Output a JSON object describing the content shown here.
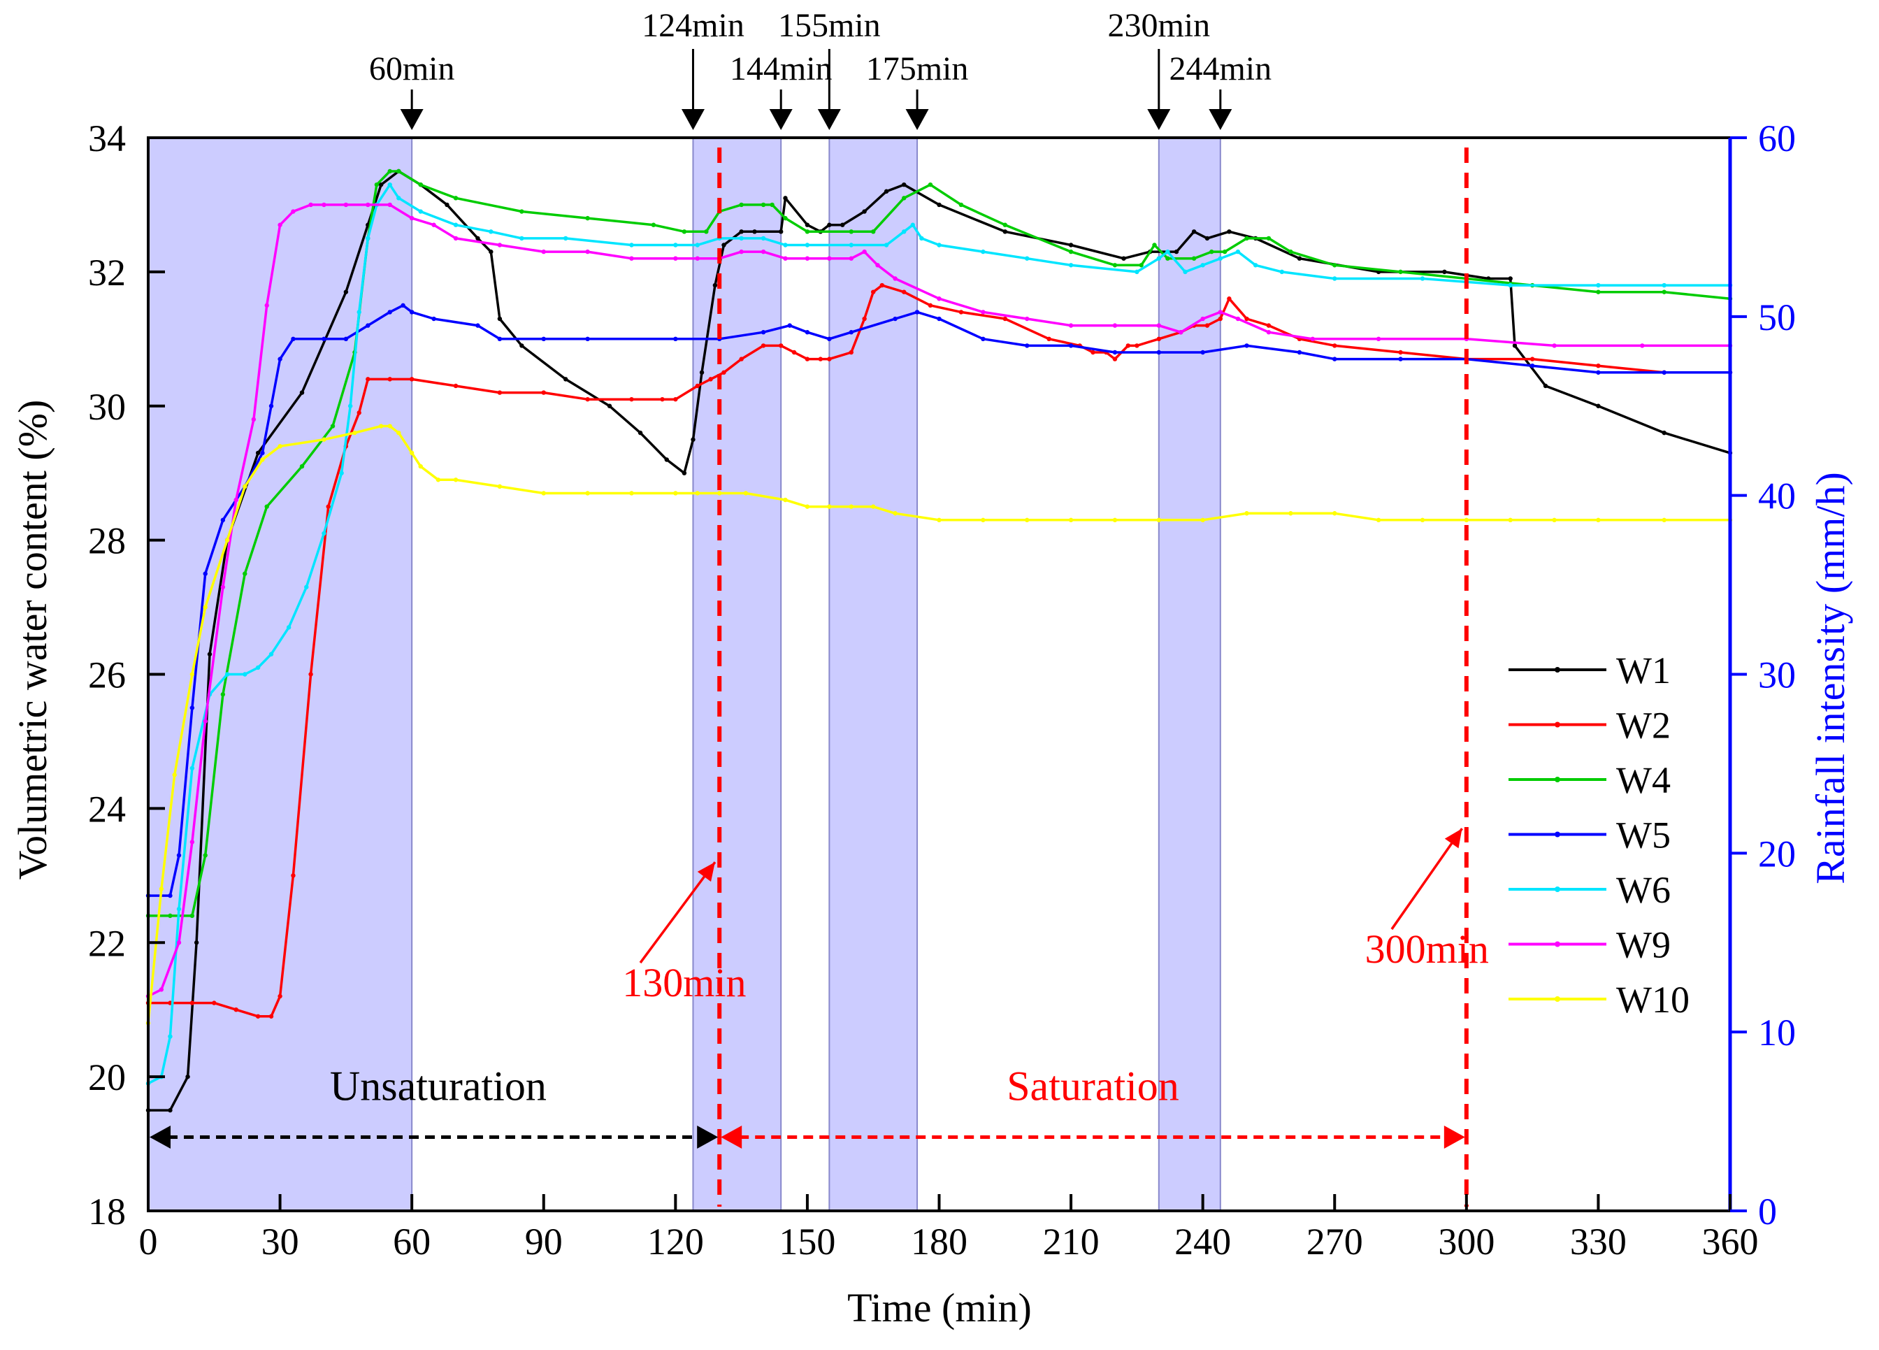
{
  "chart_data": {
    "type": "line",
    "title": "",
    "xlabel": "Time (min)",
    "ylabel": "Volumetric water content (%)",
    "y2label": "Rainfall intensity (mm/h)",
    "xlim": [
      0,
      360
    ],
    "ylim": [
      18,
      34
    ],
    "y2lim": [
      0,
      60
    ],
    "xticks": [
      0,
      30,
      60,
      90,
      120,
      150,
      180,
      210,
      240,
      270,
      300,
      330,
      360
    ],
    "yticks": [
      18,
      20,
      22,
      24,
      26,
      28,
      30,
      32,
      34
    ],
    "y2ticks": [
      0,
      10,
      20,
      30,
      40,
      50,
      60
    ],
    "grid": false,
    "legend_position": "right",
    "colors": {
      "W1": "#000000",
      "W2": "#ff0000",
      "W4": "#00cc00",
      "W5": "#0000ff",
      "W6": "#00e5ff",
      "W9": "#ff00ff",
      "W10": "#ffff00",
      "rain_band": "#ccccff",
      "right_axis": "#0000ff",
      "marker_red": "#ff0000"
    },
    "rainfall_periods": [
      {
        "start": 0,
        "end": 60
      },
      {
        "start": 124,
        "end": 144
      },
      {
        "start": 155,
        "end": 175
      },
      {
        "start": 230,
        "end": 244
      }
    ],
    "top_annotations": [
      {
        "label": "60min",
        "x": 60,
        "level": "low"
      },
      {
        "label": "124min",
        "x": 124,
        "level": "high"
      },
      {
        "label": "144min",
        "x": 144,
        "level": "low"
      },
      {
        "label": "155min",
        "x": 155,
        "level": "high"
      },
      {
        "label": "175min",
        "x": 175,
        "level": "low"
      },
      {
        "label": "230min",
        "x": 230,
        "level": "high"
      },
      {
        "label": "244min",
        "x": 244,
        "level": "low"
      }
    ],
    "vertical_markers": [
      {
        "label": "130min",
        "x": 130,
        "label_x": 122,
        "label_y": 21.2,
        "arrow_from": [
          112,
          21.7
        ],
        "arrow_to": [
          129,
          23.2
        ]
      },
      {
        "label": "300min",
        "x": 300,
        "label_x": 291,
        "label_y": 21.7,
        "arrow_from": [
          283,
          22.2
        ],
        "arrow_to": [
          299,
          23.7
        ]
      }
    ],
    "phase_labels": [
      {
        "label": "Unsaturation",
        "x": 66,
        "y": 19.65,
        "color": "#000000"
      },
      {
        "label": "Saturation",
        "x": 215,
        "y": 19.65,
        "color": "#ff0000"
      }
    ],
    "phase_arrows": [
      {
        "x0": 0,
        "x1": 130,
        "y": 19.1,
        "color": "#000000"
      },
      {
        "x0": 130,
        "x1": 300,
        "y": 19.1,
        "color": "#ff0000"
      }
    ],
    "series": [
      {
        "name": "W1",
        "x": [
          0,
          5,
          9,
          11,
          14,
          18,
          25,
          35,
          45,
          50,
          53,
          57,
          62,
          68,
          75,
          78,
          80,
          85,
          95,
          105,
          112,
          118,
          122,
          124,
          126,
          129,
          131,
          135,
          138,
          144,
          145,
          150,
          153,
          155,
          158,
          163,
          168,
          172,
          180,
          195,
          210,
          222,
          228,
          234,
          238,
          241,
          246,
          252,
          262,
          280,
          295,
          305,
          310,
          311,
          318,
          330,
          345,
          360
        ],
        "values": [
          19.5,
          19.5,
          20.0,
          22.0,
          26.3,
          28.0,
          29.3,
          30.2,
          31.7,
          32.7,
          33.3,
          33.5,
          33.3,
          33.0,
          32.5,
          32.3,
          31.3,
          30.9,
          30.4,
          30.0,
          29.6,
          29.2,
          29.0,
          29.5,
          30.5,
          31.8,
          32.4,
          32.6,
          32.6,
          32.6,
          33.1,
          32.7,
          32.6,
          32.7,
          32.7,
          32.9,
          33.2,
          33.3,
          33.0,
          32.6,
          32.4,
          32.2,
          32.3,
          32.3,
          32.6,
          32.5,
          32.6,
          32.5,
          32.2,
          32.0,
          32.0,
          31.9,
          31.9,
          30.9,
          30.3,
          30.0,
          29.6,
          29.3
        ]
      },
      {
        "name": "W2",
        "x": [
          0,
          5,
          10,
          15,
          20,
          25,
          28,
          30,
          33,
          37,
          41,
          45,
          48,
          50,
          55,
          60,
          70,
          80,
          90,
          100,
          110,
          117,
          120,
          125,
          128,
          131,
          135,
          140,
          144,
          147,
          150,
          153,
          155,
          160,
          163,
          165,
          167,
          172,
          178,
          185,
          195,
          205,
          212,
          215,
          218,
          220,
          223,
          225,
          230,
          235,
          238,
          241,
          244,
          246,
          250,
          255,
          262,
          270,
          285,
          300,
          315,
          330,
          345,
          360
        ],
        "values": [
          21.1,
          21.1,
          21.1,
          21.1,
          21.0,
          20.9,
          20.9,
          21.2,
          23.0,
          26.0,
          28.5,
          29.4,
          29.9,
          30.4,
          30.4,
          30.4,
          30.3,
          30.2,
          30.2,
          30.1,
          30.1,
          30.1,
          30.1,
          30.3,
          30.4,
          30.5,
          30.7,
          30.9,
          30.9,
          30.8,
          30.7,
          30.7,
          30.7,
          30.8,
          31.3,
          31.7,
          31.8,
          31.7,
          31.5,
          31.4,
          31.3,
          31.0,
          30.9,
          30.8,
          30.8,
          30.7,
          30.9,
          30.9,
          31.0,
          31.1,
          31.2,
          31.2,
          31.3,
          31.6,
          31.3,
          31.2,
          31.0,
          30.9,
          30.8,
          30.7,
          30.7,
          30.6,
          30.5,
          30.5
        ]
      },
      {
        "name": "W4",
        "x": [
          0,
          5,
          10,
          13,
          17,
          22,
          27,
          35,
          42,
          47,
          50,
          52,
          55,
          57,
          62,
          70,
          85,
          100,
          115,
          122,
          127,
          130,
          135,
          140,
          142,
          145,
          150,
          160,
          165,
          172,
          178,
          185,
          195,
          210,
          220,
          226,
          229,
          232,
          238,
          242,
          245,
          250,
          255,
          260,
          270,
          285,
          300,
          315,
          330,
          345,
          360
        ],
        "values": [
          22.4,
          22.4,
          22.4,
          23.3,
          25.7,
          27.5,
          28.5,
          29.1,
          29.7,
          30.8,
          32.5,
          33.3,
          33.5,
          33.5,
          33.3,
          33.1,
          32.9,
          32.8,
          32.7,
          32.6,
          32.6,
          32.9,
          33.0,
          33.0,
          33.0,
          32.8,
          32.6,
          32.6,
          32.6,
          33.1,
          33.3,
          33.0,
          32.7,
          32.3,
          32.1,
          32.1,
          32.4,
          32.2,
          32.2,
          32.3,
          32.3,
          32.5,
          32.5,
          32.3,
          32.1,
          32.0,
          31.9,
          31.8,
          31.7,
          31.7,
          31.6
        ]
      },
      {
        "name": "W5",
        "x": [
          0,
          5,
          7,
          10,
          13,
          17,
          22,
          26,
          28,
          30,
          33,
          40,
          45,
          50,
          55,
          58,
          60,
          65,
          75,
          80,
          90,
          100,
          120,
          130,
          140,
          146,
          150,
          155,
          160,
          170,
          175,
          180,
          190,
          200,
          210,
          220,
          230,
          240,
          250,
          262,
          270,
          285,
          300,
          315,
          330,
          345,
          360
        ],
        "values": [
          22.7,
          22.7,
          23.3,
          25.5,
          27.5,
          28.3,
          28.8,
          29.3,
          30.0,
          30.7,
          31.0,
          31.0,
          31.0,
          31.2,
          31.4,
          31.5,
          31.4,
          31.3,
          31.2,
          31.0,
          31.0,
          31.0,
          31.0,
          31.0,
          31.1,
          31.2,
          31.1,
          31.0,
          31.1,
          31.3,
          31.4,
          31.3,
          31.0,
          30.9,
          30.9,
          30.8,
          30.8,
          30.8,
          30.9,
          30.8,
          30.7,
          30.7,
          30.7,
          30.6,
          30.5,
          30.5,
          30.5
        ]
      },
      {
        "name": "W6",
        "x": [
          0,
          3,
          5,
          7,
          10,
          14,
          18,
          22,
          25,
          28,
          32,
          36,
          40,
          44,
          46,
          48,
          50,
          52,
          55,
          57,
          62,
          70,
          78,
          85,
          95,
          110,
          120,
          125,
          130,
          135,
          140,
          145,
          150,
          160,
          168,
          172,
          174,
          176,
          180,
          190,
          200,
          210,
          225,
          230,
          232,
          236,
          240,
          244,
          248,
          252,
          258,
          270,
          290,
          310,
          330,
          345,
          360
        ],
        "values": [
          19.9,
          20.0,
          20.6,
          22.5,
          24.6,
          25.7,
          26.0,
          26.0,
          26.1,
          26.3,
          26.7,
          27.3,
          28.1,
          29.0,
          30.0,
          31.4,
          32.5,
          33.0,
          33.3,
          33.1,
          32.9,
          32.7,
          32.6,
          32.5,
          32.5,
          32.4,
          32.4,
          32.4,
          32.5,
          32.5,
          32.5,
          32.4,
          32.4,
          32.4,
          32.4,
          32.6,
          32.7,
          32.5,
          32.4,
          32.3,
          32.2,
          32.1,
          32.0,
          32.2,
          32.3,
          32.0,
          32.1,
          32.2,
          32.3,
          32.1,
          32.0,
          31.9,
          31.9,
          31.8,
          31.8,
          31.8,
          31.8
        ]
      },
      {
        "name": "W9",
        "x": [
          0,
          3,
          7,
          10,
          13,
          17,
          20,
          24,
          27,
          30,
          33,
          37,
          40,
          45,
          50,
          55,
          60,
          65,
          70,
          80,
          90,
          100,
          110,
          120,
          125,
          130,
          135,
          140,
          145,
          150,
          155,
          160,
          163,
          166,
          170,
          180,
          190,
          200,
          210,
          220,
          230,
          235,
          240,
          244,
          248,
          255,
          265,
          280,
          300,
          320,
          340,
          360
        ],
        "values": [
          21.2,
          21.3,
          22.0,
          23.5,
          25.3,
          27.3,
          28.6,
          29.8,
          31.5,
          32.7,
          32.9,
          33.0,
          33.0,
          33.0,
          33.0,
          33.0,
          32.8,
          32.7,
          32.5,
          32.4,
          32.3,
          32.3,
          32.2,
          32.2,
          32.2,
          32.2,
          32.3,
          32.3,
          32.2,
          32.2,
          32.2,
          32.2,
          32.3,
          32.1,
          31.9,
          31.6,
          31.4,
          31.3,
          31.2,
          31.2,
          31.2,
          31.1,
          31.3,
          31.4,
          31.3,
          31.1,
          31.0,
          31.0,
          31.0,
          30.9,
          30.9,
          30.9
        ]
      },
      {
        "name": "W10",
        "x": [
          0,
          3,
          6,
          10,
          13,
          18,
          22,
          26,
          30,
          40,
          47,
          53,
          55,
          57,
          60,
          62,
          66,
          70,
          80,
          90,
          100,
          110,
          120,
          125,
          130,
          136,
          145,
          150,
          155,
          160,
          165,
          170,
          180,
          190,
          200,
          210,
          220,
          230,
          240,
          250,
          260,
          270,
          280,
          290,
          300,
          310,
          320,
          330,
          345,
          360
        ],
        "values": [
          20.8,
          22.8,
          24.5,
          26.0,
          27.0,
          28.0,
          28.8,
          29.2,
          29.4,
          29.5,
          29.6,
          29.7,
          29.7,
          29.6,
          29.3,
          29.1,
          28.9,
          28.9,
          28.8,
          28.7,
          28.7,
          28.7,
          28.7,
          28.7,
          28.7,
          28.7,
          28.6,
          28.5,
          28.5,
          28.5,
          28.5,
          28.4,
          28.3,
          28.3,
          28.3,
          28.3,
          28.3,
          28.3,
          28.3,
          28.4,
          28.4,
          28.4,
          28.3,
          28.3,
          28.3,
          28.3,
          28.3,
          28.3,
          28.3,
          28.3
        ]
      }
    ]
  }
}
